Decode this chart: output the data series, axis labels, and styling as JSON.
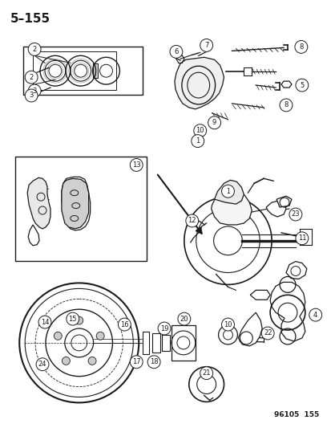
{
  "page_label": "5–155",
  "footer_label": "96105  155",
  "bg_color": "#ffffff",
  "line_color": "#1a1a1a",
  "lw": 0.9
}
